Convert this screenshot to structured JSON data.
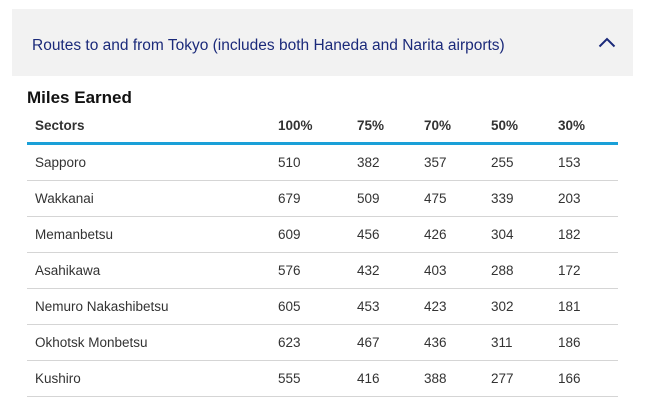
{
  "accordion": {
    "title": "Routes to and from Tokyo (includes both Haneda and Narita airports)",
    "toggle_icon": "chevron-up-icon",
    "accent_color": "#1b2a7a"
  },
  "section": {
    "title": "Miles Earned"
  },
  "table": {
    "headers": [
      "Sectors",
      "100%",
      "75%",
      "70%",
      "50%",
      "30%"
    ],
    "header_rule_color": "#1aa0d8",
    "rows": [
      [
        "Sapporo",
        "510",
        "382",
        "357",
        "255",
        "153"
      ],
      [
        "Wakkanai",
        "679",
        "509",
        "475",
        "339",
        "203"
      ],
      [
        "Memanbetsu",
        "609",
        "456",
        "426",
        "304",
        "182"
      ],
      [
        "Asahikawa",
        "576",
        "432",
        "403",
        "288",
        "172"
      ],
      [
        "Nemuro Nakashibetsu",
        "605",
        "453",
        "423",
        "302",
        "181"
      ],
      [
        "Okhotsk Monbetsu",
        "623",
        "467",
        "436",
        "311",
        "186"
      ],
      [
        "Kushiro",
        "555",
        "416",
        "388",
        "277",
        "166"
      ]
    ]
  }
}
